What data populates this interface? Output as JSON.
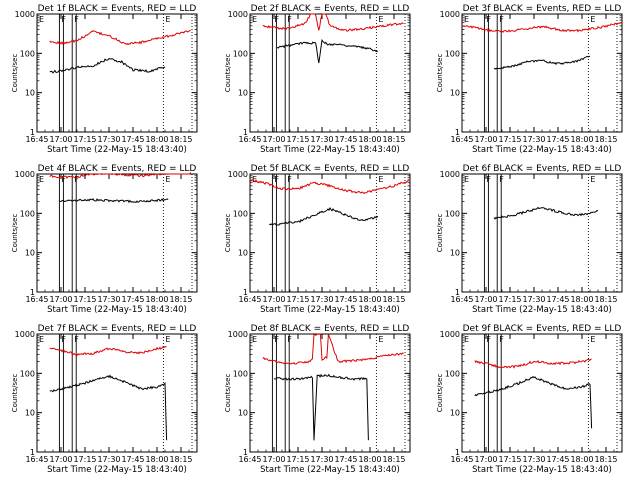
{
  "figure": {
    "time_ticks": [
      "16:45",
      "17:00",
      "17:15",
      "17:30",
      "17:45",
      "18:00",
      "18:15"
    ],
    "y_ticks": [
      "1",
      "10",
      "100",
      "1000"
    ],
    "markers": [
      {
        "label": "E",
        "time": "16:45"
      },
      {
        "label": "F",
        "time": "16:59"
      },
      {
        "label": "F",
        "time": "17:07"
      },
      {
        "label": "E",
        "time": "18:04"
      }
    ],
    "colors": {
      "events": "#000000",
      "lld": "#e00000",
      "axes": "#000000"
    }
  },
  "chart_data": [
    {
      "type": "line",
      "title": "Det 1f BLACK = Events, RED = LLD",
      "xlabel": "Start Time (22-May-15 18:43:40)",
      "ylabel": "Counts/sec",
      "x_range": [
        "16:45",
        "18:25"
      ],
      "ylim": [
        1,
        1000
      ],
      "yscale": "log",
      "x_ticks": [
        "16:45",
        "17:00",
        "17:15",
        "17:30",
        "17:45",
        "18:00",
        "18:15"
      ],
      "y_ticks": [
        1,
        10,
        100,
        1000
      ],
      "series": [
        {
          "name": "Events",
          "color": "#000000",
          "x": [
            "16:53",
            "17:00",
            "17:10",
            "17:20",
            "17:30",
            "17:38",
            "17:45",
            "17:55",
            "18:05"
          ],
          "values": [
            33,
            36,
            44,
            48,
            75,
            60,
            38,
            35,
            45
          ]
        },
        {
          "name": "LLD",
          "color": "#e00000",
          "x": [
            "16:53",
            "17:00",
            "17:10",
            "17:20",
            "17:30",
            "17:40",
            "17:50",
            "18:00",
            "18:10",
            "18:21"
          ],
          "values": [
            200,
            180,
            210,
            360,
            280,
            175,
            190,
            240,
            290,
            380
          ]
        }
      ]
    },
    {
      "type": "line",
      "title": "Det 2f BLACK = Events, RED = LLD",
      "xlabel": "Start Time (22-May-15 18:43:40)",
      "ylabel": "Counts/sec",
      "x_range": [
        "16:45",
        "18:25"
      ],
      "ylim": [
        1,
        1000
      ],
      "yscale": "log",
      "x_ticks": [
        "16:45",
        "17:00",
        "17:15",
        "17:30",
        "17:45",
        "18:00",
        "18:15"
      ],
      "y_ticks": [
        1,
        10,
        100,
        1000
      ],
      "series": [
        {
          "name": "Events",
          "color": "#000000",
          "x": [
            "17:02",
            "17:10",
            "17:20",
            "17:26",
            "17:28",
            "17:30",
            "17:33",
            "17:40",
            "17:50",
            "18:00",
            "18:05"
          ],
          "values": [
            140,
            160,
            190,
            180,
            60,
            210,
            170,
            170,
            150,
            130,
            115
          ]
        },
        {
          "name": "LLD",
          "color": "#e00000",
          "x": [
            "16:53",
            "17:00",
            "17:10",
            "17:20",
            "17:25",
            "17:28",
            "17:31",
            "17:35",
            "17:45",
            "17:55",
            "18:05",
            "18:21"
          ],
          "values": [
            500,
            450,
            420,
            600,
            1500,
            400,
            1500,
            500,
            380,
            420,
            480,
            580
          ]
        }
      ]
    },
    {
      "type": "line",
      "title": "Det 3f BLACK = Events, RED = LLD",
      "xlabel": "Start Time (22-May-15 18:43:40)",
      "ylabel": "Counts/sec",
      "x_range": [
        "16:45",
        "18:25"
      ],
      "ylim": [
        1,
        1000
      ],
      "yscale": "log",
      "x_ticks": [
        "16:45",
        "17:00",
        "17:15",
        "17:30",
        "17:45",
        "18:00",
        "18:15"
      ],
      "y_ticks": [
        1,
        10,
        100,
        1000
      ],
      "series": [
        {
          "name": "Events",
          "color": "#000000",
          "x": [
            "17:05",
            "17:15",
            "17:25",
            "17:35",
            "17:45",
            "17:55",
            "18:05"
          ],
          "values": [
            40,
            45,
            60,
            65,
            55,
            60,
            85
          ]
        },
        {
          "name": "LLD",
          "color": "#e00000",
          "x": [
            "16:45",
            "16:55",
            "17:05",
            "17:15",
            "17:25",
            "17:35",
            "17:45",
            "17:55",
            "18:05",
            "18:15",
            "18:25"
          ],
          "values": [
            520,
            430,
            360,
            370,
            420,
            480,
            400,
            370,
            420,
            480,
            620
          ]
        }
      ]
    },
    {
      "type": "line",
      "title": "Det 4f BLACK = Events, RED = LLD",
      "xlabel": "Start Time (22-May-15 18:43:40)",
      "ylabel": "Counts/sec",
      "x_range": [
        "16:45",
        "18:25"
      ],
      "ylim": [
        1,
        1000
      ],
      "yscale": "log",
      "x_ticks": [
        "16:45",
        "17:00",
        "17:15",
        "17:30",
        "17:45",
        "18:00",
        "18:15"
      ],
      "y_ticks": [
        1,
        10,
        100,
        1000
      ],
      "series": [
        {
          "name": "Events",
          "color": "#000000",
          "x": [
            "16:59",
            "17:10",
            "17:20",
            "17:30",
            "17:40",
            "17:50",
            "18:00",
            "18:07"
          ],
          "values": [
            210,
            215,
            220,
            210,
            205,
            200,
            215,
            225
          ]
        },
        {
          "name": "LLD",
          "color": "#e00000",
          "x": [
            "16:53",
            "17:00",
            "17:10",
            "17:20",
            "17:30",
            "17:40",
            "17:50",
            "18:00",
            "18:10",
            "18:21"
          ],
          "values": [
            900,
            820,
            850,
            1000,
            1050,
            950,
            900,
            1000,
            1050,
            1100
          ]
        }
      ]
    },
    {
      "type": "line",
      "title": "Det 5f BLACK = Events, RED = LLD",
      "xlabel": "Start Time (22-May-15 18:43:40)",
      "ylabel": "Counts/sec",
      "x_range": [
        "16:45",
        "18:25"
      ],
      "ylim": [
        1,
        1000
      ],
      "yscale": "log",
      "x_ticks": [
        "16:45",
        "17:00",
        "17:15",
        "17:30",
        "17:45",
        "18:00",
        "18:15"
      ],
      "y_ticks": [
        1,
        10,
        100,
        1000
      ],
      "series": [
        {
          "name": "Events",
          "color": "#000000",
          "x": [
            "16:57",
            "17:05",
            "17:15",
            "17:25",
            "17:35",
            "17:45",
            "17:55",
            "18:05"
          ],
          "values": [
            50,
            55,
            60,
            90,
            130,
            90,
            65,
            80
          ]
        },
        {
          "name": "LLD",
          "color": "#e00000",
          "x": [
            "16:45",
            "16:55",
            "17:05",
            "17:15",
            "17:25",
            "17:35",
            "17:45",
            "17:55",
            "18:05",
            "18:15",
            "18:25"
          ],
          "values": [
            700,
            580,
            420,
            420,
            600,
            500,
            380,
            330,
            400,
            500,
            700
          ]
        }
      ]
    },
    {
      "type": "line",
      "title": "Det 6f BLACK = Events, RED = LLD",
      "xlabel": "Start Time (22-May-15 18:43:40)",
      "ylabel": "Counts/sec",
      "x_range": [
        "16:45",
        "18:25"
      ],
      "ylim": [
        1,
        1000
      ],
      "yscale": "log",
      "x_ticks": [
        "16:45",
        "17:00",
        "17:15",
        "17:30",
        "17:45",
        "18:00",
        "18:15"
      ],
      "y_ticks": [
        1,
        10,
        100,
        1000
      ],
      "series": [
        {
          "name": "Events",
          "color": "#000000",
          "x": [
            "17:05",
            "17:15",
            "17:25",
            "17:35",
            "17:45",
            "17:55",
            "18:05",
            "18:10"
          ],
          "values": [
            75,
            85,
            110,
            140,
            110,
            90,
            100,
            115
          ]
        },
        {
          "name": "LLD",
          "color": "#e00000",
          "x": [],
          "values": []
        }
      ]
    },
    {
      "type": "line",
      "title": "Det 7f BLACK = Events, RED = LLD",
      "xlabel": "Start Time (22-May-15 18:43:40)",
      "ylabel": "Counts/sec",
      "x_range": [
        "16:45",
        "18:25"
      ],
      "ylim": [
        1,
        1000
      ],
      "yscale": "log",
      "x_ticks": [
        "16:45",
        "17:00",
        "17:15",
        "17:30",
        "17:45",
        "18:00",
        "18:15"
      ],
      "y_ticks": [
        1,
        10,
        100,
        1000
      ],
      "series": [
        {
          "name": "Events",
          "color": "#000000",
          "x": [
            "16:53",
            "17:00",
            "17:10",
            "17:20",
            "17:30",
            "17:40",
            "17:50",
            "18:00",
            "18:05",
            "18:06"
          ],
          "values": [
            35,
            40,
            50,
            65,
            85,
            60,
            40,
            45,
            55,
            2
          ]
        },
        {
          "name": "LLD",
          "color": "#e00000",
          "x": [
            "16:53",
            "17:00",
            "17:10",
            "17:20",
            "17:30",
            "17:40",
            "17:50",
            "18:00",
            "18:06"
          ],
          "values": [
            450,
            380,
            300,
            320,
            430,
            360,
            330,
            420,
            480
          ]
        }
      ]
    },
    {
      "type": "line",
      "title": "Det 8f BLACK = Events, RED = LLD",
      "xlabel": "Start Time (22-May-15 18:43:40)",
      "ylabel": "Counts/sec",
      "x_range": [
        "16:45",
        "18:25"
      ],
      "ylim": [
        1,
        1000
      ],
      "yscale": "log",
      "x_ticks": [
        "16:45",
        "17:00",
        "17:15",
        "17:30",
        "17:45",
        "18:00",
        "18:15"
      ],
      "y_ticks": [
        1,
        10,
        100,
        1000
      ],
      "series": [
        {
          "name": "Events",
          "color": "#000000",
          "x": [
            "17:00",
            "17:10",
            "17:20",
            "17:24",
            "17:25",
            "17:27",
            "17:33",
            "17:40",
            "17:50",
            "17:58",
            "17:59"
          ],
          "values": [
            75,
            70,
            75,
            80,
            2,
            85,
            90,
            80,
            70,
            75,
            2
          ]
        },
        {
          "name": "LLD",
          "color": "#e00000",
          "x": [
            "16:53",
            "17:00",
            "17:10",
            "17:20",
            "17:24",
            "17:25",
            "17:29",
            "17:30",
            "17:33",
            "17:34",
            "17:40",
            "17:50",
            "18:00",
            "18:10",
            "18:21"
          ],
          "values": [
            250,
            200,
            180,
            190,
            220,
            1000,
            1000,
            220,
            260,
            1000,
            200,
            210,
            230,
            280,
            320
          ]
        }
      ]
    },
    {
      "type": "line",
      "title": "Det 9f BLACK = Events, RED = LLD",
      "xlabel": "Start Time (22-May-15 18:43:40)",
      "ylabel": "Counts/sec",
      "x_range": [
        "16:45",
        "18:25"
      ],
      "ylim": [
        1,
        1000
      ],
      "yscale": "log",
      "x_ticks": [
        "16:45",
        "17:00",
        "17:15",
        "17:30",
        "17:45",
        "18:00",
        "18:15"
      ],
      "y_ticks": [
        1,
        10,
        100,
        1000
      ],
      "series": [
        {
          "name": "Events",
          "color": "#000000",
          "x": [
            "16:53",
            "17:00",
            "17:10",
            "17:20",
            "17:30",
            "17:40",
            "17:50",
            "18:00",
            "18:05",
            "18:06"
          ],
          "values": [
            28,
            32,
            40,
            55,
            80,
            55,
            40,
            45,
            55,
            4
          ]
        },
        {
          "name": "LLD",
          "color": "#e00000",
          "x": [
            "16:53",
            "17:00",
            "17:10",
            "17:20",
            "17:30",
            "17:40",
            "17:50",
            "18:00",
            "18:06"
          ],
          "values": [
            200,
            180,
            140,
            150,
            200,
            180,
            180,
            200,
            230
          ]
        }
      ]
    }
  ]
}
